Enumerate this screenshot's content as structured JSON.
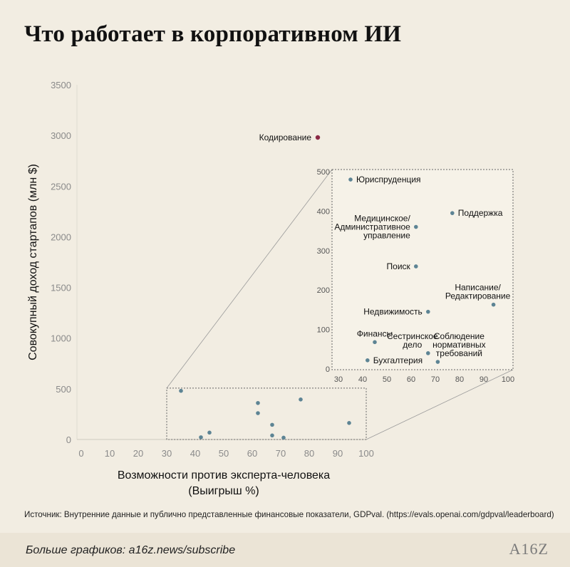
{
  "title": "Что работает в корпоративном ИИ",
  "source": "Источник: Внутренние данные и публично представленные финансовые показатели, GDPval. (https://evals.openai.com/gdpval/leaderboard)",
  "footer": {
    "link_text": "Больше графиков: a16z.news/subscribe",
    "logo_text": "A16Z"
  },
  "colors": {
    "point": "#5d8494",
    "highlight": "#8b2a45",
    "background": "#f2ede2",
    "footer": "#ebe4d6"
  },
  "chart_data": [
    {
      "type": "scatter",
      "title": "Что работает в корпоративном ИИ",
      "xlabel": "Возможности против эксперта-человека",
      "xlabel_line2": "(Выигрыш %)",
      "ylabel": "Совокупный доход стартапов (млн $)",
      "xlim": [
        0,
        100
      ],
      "ylim": [
        0,
        3500
      ],
      "xticks": [
        0,
        10,
        20,
        30,
        40,
        50,
        60,
        70,
        80,
        90,
        100
      ],
      "yticks": [
        0,
        500,
        1000,
        1500,
        2000,
        2500,
        3000,
        3500
      ],
      "grid": false,
      "highlight_label": "Кодирование",
      "points": [
        {
          "label": "Кодирование",
          "x": 83,
          "y": 2980,
          "highlight": true
        },
        {
          "label": "Юриспруденция",
          "x": 35,
          "y": 480
        },
        {
          "label": "Поддержка",
          "x": 77,
          "y": 395
        },
        {
          "label": "Медицинское/ Административное управление",
          "x": 62,
          "y": 360
        },
        {
          "label": "Поиск",
          "x": 62,
          "y": 260
        },
        {
          "label": "Написание/ Редактирование",
          "x": 94,
          "y": 163
        },
        {
          "label": "Недвижимость",
          "x": 67,
          "y": 145
        },
        {
          "label": "Финансы",
          "x": 45,
          "y": 68
        },
        {
          "label": "Сестринское дело",
          "x": 67,
          "y": 40
        },
        {
          "label": "Бухгалтерия",
          "x": 42,
          "y": 22
        },
        {
          "label": "Соблюдение нормативных требований",
          "x": 71,
          "y": 18
        }
      ]
    },
    {
      "type": "scatter",
      "title": "",
      "xlim": [
        30,
        100
      ],
      "ylim": [
        0,
        500
      ],
      "xticks": [
        30,
        40,
        50,
        60,
        70,
        80,
        90,
        100
      ],
      "yticks": [
        0,
        100,
        200,
        300,
        400,
        500
      ],
      "grid": false,
      "points": [
        {
          "label": "Юриспруденция",
          "x": 35,
          "y": 480,
          "lines": [
            "Юриспруденция"
          ],
          "anchor": "right"
        },
        {
          "label": "Поддержка",
          "x": 77,
          "y": 395,
          "lines": [
            "Поддержка"
          ],
          "anchor": "right"
        },
        {
          "label": "Медицинское/ Административное управление",
          "x": 62,
          "y": 360,
          "lines": [
            "Медицинское/",
            "Административное",
            "управление"
          ],
          "anchor": "left"
        },
        {
          "label": "Поиск",
          "x": 62,
          "y": 260,
          "lines": [
            "Поиск"
          ],
          "anchor": "left"
        },
        {
          "label": "Написание/ Редактирование",
          "x": 94,
          "y": 163,
          "lines": [
            "Написание/",
            "Редактирование"
          ],
          "anchor": "above-left"
        },
        {
          "label": "Недвижимость",
          "x": 67,
          "y": 145,
          "lines": [
            "Недвижимость"
          ],
          "anchor": "left"
        },
        {
          "label": "Финансы",
          "x": 45,
          "y": 68,
          "lines": [
            "Финансы"
          ],
          "anchor": "above"
        },
        {
          "label": "Сестринское дело",
          "x": 67,
          "y": 40,
          "lines": [
            "Сестринское",
            "дело"
          ],
          "anchor": "above-left"
        },
        {
          "label": "Бухгалтерия",
          "x": 42,
          "y": 22,
          "lines": [
            "Бухгалтерия"
          ],
          "anchor": "right"
        },
        {
          "label": "Соблюдение нормативных требований",
          "x": 71,
          "y": 18,
          "lines": [
            "Соблюдение",
            "нормативных",
            "требований"
          ],
          "anchor": "above-right"
        }
      ]
    }
  ]
}
